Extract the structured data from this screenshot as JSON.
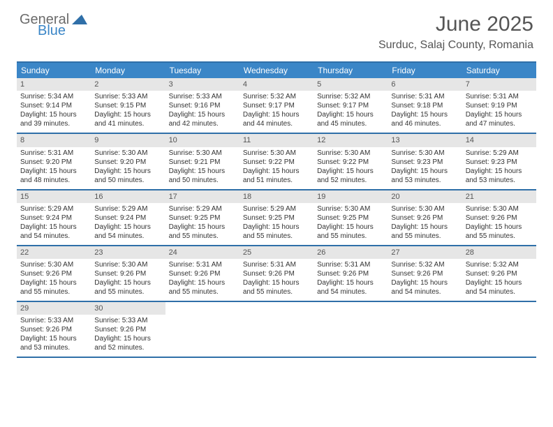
{
  "logo": {
    "general": "General",
    "blue": "Blue"
  },
  "title": "June 2025",
  "location": "Surduc, Salaj County, Romania",
  "colors": {
    "header_bg": "#3b86c7",
    "header_text": "#ffffff",
    "border": "#2f6fa8",
    "daynum_bg": "#e6e6e6",
    "text": "#333333",
    "title_color": "#555555"
  },
  "day_headers": [
    "Sunday",
    "Monday",
    "Tuesday",
    "Wednesday",
    "Thursday",
    "Friday",
    "Saturday"
  ],
  "weeks": [
    [
      {
        "n": "1",
        "sr": "Sunrise: 5:34 AM",
        "ss": "Sunset: 9:14 PM",
        "d1": "Daylight: 15 hours",
        "d2": "and 39 minutes."
      },
      {
        "n": "2",
        "sr": "Sunrise: 5:33 AM",
        "ss": "Sunset: 9:15 PM",
        "d1": "Daylight: 15 hours",
        "d2": "and 41 minutes."
      },
      {
        "n": "3",
        "sr": "Sunrise: 5:33 AM",
        "ss": "Sunset: 9:16 PM",
        "d1": "Daylight: 15 hours",
        "d2": "and 42 minutes."
      },
      {
        "n": "4",
        "sr": "Sunrise: 5:32 AM",
        "ss": "Sunset: 9:17 PM",
        "d1": "Daylight: 15 hours",
        "d2": "and 44 minutes."
      },
      {
        "n": "5",
        "sr": "Sunrise: 5:32 AM",
        "ss": "Sunset: 9:17 PM",
        "d1": "Daylight: 15 hours",
        "d2": "and 45 minutes."
      },
      {
        "n": "6",
        "sr": "Sunrise: 5:31 AM",
        "ss": "Sunset: 9:18 PM",
        "d1": "Daylight: 15 hours",
        "d2": "and 46 minutes."
      },
      {
        "n": "7",
        "sr": "Sunrise: 5:31 AM",
        "ss": "Sunset: 9:19 PM",
        "d1": "Daylight: 15 hours",
        "d2": "and 47 minutes."
      }
    ],
    [
      {
        "n": "8",
        "sr": "Sunrise: 5:31 AM",
        "ss": "Sunset: 9:20 PM",
        "d1": "Daylight: 15 hours",
        "d2": "and 48 minutes."
      },
      {
        "n": "9",
        "sr": "Sunrise: 5:30 AM",
        "ss": "Sunset: 9:20 PM",
        "d1": "Daylight: 15 hours",
        "d2": "and 50 minutes."
      },
      {
        "n": "10",
        "sr": "Sunrise: 5:30 AM",
        "ss": "Sunset: 9:21 PM",
        "d1": "Daylight: 15 hours",
        "d2": "and 50 minutes."
      },
      {
        "n": "11",
        "sr": "Sunrise: 5:30 AM",
        "ss": "Sunset: 9:22 PM",
        "d1": "Daylight: 15 hours",
        "d2": "and 51 minutes."
      },
      {
        "n": "12",
        "sr": "Sunrise: 5:30 AM",
        "ss": "Sunset: 9:22 PM",
        "d1": "Daylight: 15 hours",
        "d2": "and 52 minutes."
      },
      {
        "n": "13",
        "sr": "Sunrise: 5:30 AM",
        "ss": "Sunset: 9:23 PM",
        "d1": "Daylight: 15 hours",
        "d2": "and 53 minutes."
      },
      {
        "n": "14",
        "sr": "Sunrise: 5:29 AM",
        "ss": "Sunset: 9:23 PM",
        "d1": "Daylight: 15 hours",
        "d2": "and 53 minutes."
      }
    ],
    [
      {
        "n": "15",
        "sr": "Sunrise: 5:29 AM",
        "ss": "Sunset: 9:24 PM",
        "d1": "Daylight: 15 hours",
        "d2": "and 54 minutes."
      },
      {
        "n": "16",
        "sr": "Sunrise: 5:29 AM",
        "ss": "Sunset: 9:24 PM",
        "d1": "Daylight: 15 hours",
        "d2": "and 54 minutes."
      },
      {
        "n": "17",
        "sr": "Sunrise: 5:29 AM",
        "ss": "Sunset: 9:25 PM",
        "d1": "Daylight: 15 hours",
        "d2": "and 55 minutes."
      },
      {
        "n": "18",
        "sr": "Sunrise: 5:29 AM",
        "ss": "Sunset: 9:25 PM",
        "d1": "Daylight: 15 hours",
        "d2": "and 55 minutes."
      },
      {
        "n": "19",
        "sr": "Sunrise: 5:30 AM",
        "ss": "Sunset: 9:25 PM",
        "d1": "Daylight: 15 hours",
        "d2": "and 55 minutes."
      },
      {
        "n": "20",
        "sr": "Sunrise: 5:30 AM",
        "ss": "Sunset: 9:26 PM",
        "d1": "Daylight: 15 hours",
        "d2": "and 55 minutes."
      },
      {
        "n": "21",
        "sr": "Sunrise: 5:30 AM",
        "ss": "Sunset: 9:26 PM",
        "d1": "Daylight: 15 hours",
        "d2": "and 55 minutes."
      }
    ],
    [
      {
        "n": "22",
        "sr": "Sunrise: 5:30 AM",
        "ss": "Sunset: 9:26 PM",
        "d1": "Daylight: 15 hours",
        "d2": "and 55 minutes."
      },
      {
        "n": "23",
        "sr": "Sunrise: 5:30 AM",
        "ss": "Sunset: 9:26 PM",
        "d1": "Daylight: 15 hours",
        "d2": "and 55 minutes."
      },
      {
        "n": "24",
        "sr": "Sunrise: 5:31 AM",
        "ss": "Sunset: 9:26 PM",
        "d1": "Daylight: 15 hours",
        "d2": "and 55 minutes."
      },
      {
        "n": "25",
        "sr": "Sunrise: 5:31 AM",
        "ss": "Sunset: 9:26 PM",
        "d1": "Daylight: 15 hours",
        "d2": "and 55 minutes."
      },
      {
        "n": "26",
        "sr": "Sunrise: 5:31 AM",
        "ss": "Sunset: 9:26 PM",
        "d1": "Daylight: 15 hours",
        "d2": "and 54 minutes."
      },
      {
        "n": "27",
        "sr": "Sunrise: 5:32 AM",
        "ss": "Sunset: 9:26 PM",
        "d1": "Daylight: 15 hours",
        "d2": "and 54 minutes."
      },
      {
        "n": "28",
        "sr": "Sunrise: 5:32 AM",
        "ss": "Sunset: 9:26 PM",
        "d1": "Daylight: 15 hours",
        "d2": "and 54 minutes."
      }
    ],
    [
      {
        "n": "29",
        "sr": "Sunrise: 5:33 AM",
        "ss": "Sunset: 9:26 PM",
        "d1": "Daylight: 15 hours",
        "d2": "and 53 minutes."
      },
      {
        "n": "30",
        "sr": "Sunrise: 5:33 AM",
        "ss": "Sunset: 9:26 PM",
        "d1": "Daylight: 15 hours",
        "d2": "and 52 minutes."
      },
      {
        "empty": true
      },
      {
        "empty": true
      },
      {
        "empty": true
      },
      {
        "empty": true
      },
      {
        "empty": true
      }
    ]
  ]
}
